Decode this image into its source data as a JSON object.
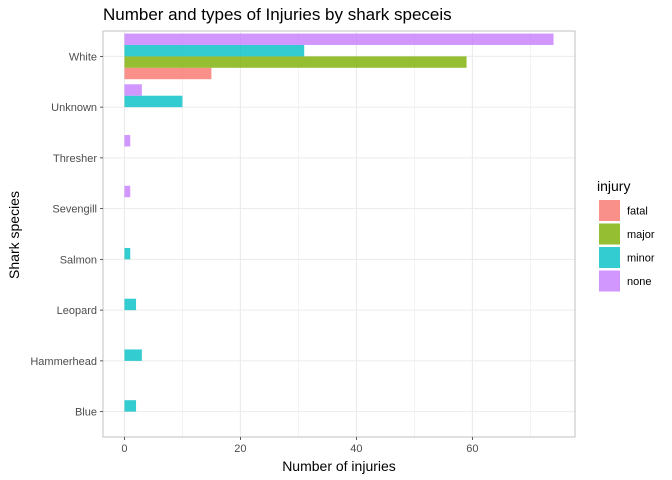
{
  "chart_data": {
    "type": "bar",
    "orientation": "horizontal",
    "title": "Number and types of Injuries by shark speceis",
    "xlabel": "Number of injuries",
    "ylabel": "Shark species",
    "xlim": [
      -3.7,
      77.7
    ],
    "x_ticks": [
      0,
      20,
      40,
      60
    ],
    "categories": [
      "White",
      "Unknown",
      "Thresher",
      "Sevengill",
      "Salmon",
      "Leopard",
      "Hammerhead",
      "Blue"
    ],
    "grid": true,
    "legend": {
      "title": "injury",
      "position": "right"
    },
    "series": [
      {
        "name": "fatal",
        "color": "#F8766D",
        "values": [
          15,
          0,
          0,
          0,
          0,
          0,
          0,
          0
        ]
      },
      {
        "name": "major",
        "color": "#7CAE00",
        "values": [
          59,
          0,
          0,
          0,
          0,
          0,
          0,
          0
        ]
      },
      {
        "name": "minor",
        "color": "#00BFC4",
        "values": [
          31,
          10,
          0,
          0,
          1,
          2,
          3,
          2
        ]
      },
      {
        "name": "none",
        "color": "#C77CFF",
        "values": [
          74,
          3,
          1,
          1,
          0,
          0,
          0,
          0
        ]
      }
    ]
  }
}
